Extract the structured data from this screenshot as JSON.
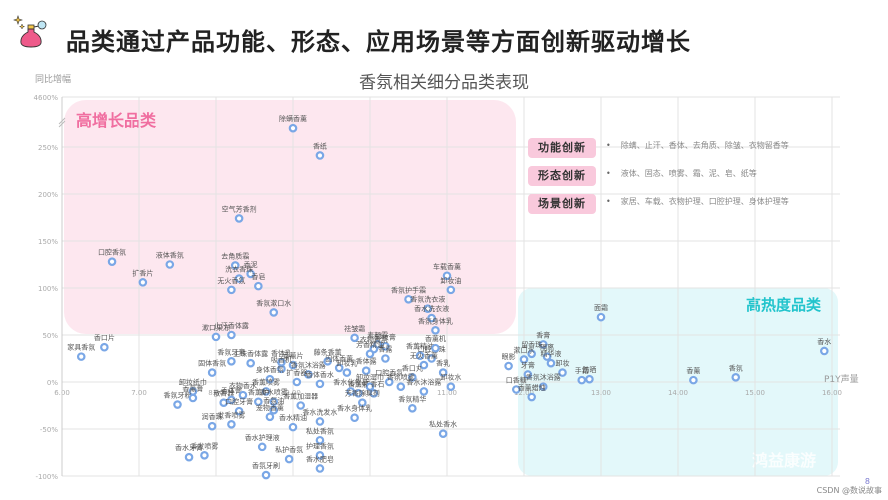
{
  "header": {
    "title": "品类通过产品功能、形态、应用场景等方面创新驱动增长",
    "icon": "perfume-bottle-icon"
  },
  "legend": [
    {
      "tag": "功能创新",
      "desc": "除螨、止汗、香体、去角质、除皱、衣物留香等"
    },
    {
      "tag": "形态创新",
      "desc": "液体、固态、喷雾、霜、泥、皂、纸等"
    },
    {
      "tag": "场景创新",
      "desc": "家居、车载、衣物护理、口腔护理、身体护理等"
    }
  ],
  "zones": {
    "high_growth": {
      "label": "高增长品类",
      "color": "#f06ea0",
      "bg": "#fde7ef"
    },
    "high_heat": {
      "label": "高热度品类",
      "color": "#22c4cc",
      "bg": "#e3f8fa"
    }
  },
  "watermark": "鸿益康游",
  "footer": {
    "credit": "CSDN @数说故事",
    "page": "8"
  },
  "colors": {
    "point": "#7aa7e6",
    "grid": "#e3e3e3",
    "axis_text": "#aaaaaa"
  },
  "chart_data": {
    "type": "scatter",
    "title": "香氛相关细分品类表现",
    "xlabel": "P1Y声量",
    "ylabel": "同比增幅",
    "x_ticks": [
      "6.00",
      "7.00",
      "8.00",
      "9.00",
      "10.00",
      "11.00",
      "12.00",
      "13.00",
      "14.00",
      "15.00",
      "16.00"
    ],
    "xlim": [
      6,
      16
    ],
    "y_ticks": [
      "4600%",
      "250%",
      "200%",
      "150%",
      "100%",
      "50%",
      "0%",
      "-50%",
      "-100%"
    ],
    "ylim": [
      -100,
      300
    ],
    "y_axis_break": "250% → 4600%",
    "grid": true,
    "points": [
      {
        "name": "除螨香薰",
        "x": 9.0,
        "y": 290
      },
      {
        "name": "香纸",
        "x": 9.35,
        "y": 241
      },
      {
        "name": "空气芳香剂",
        "x": 8.3,
        "y": 174
      },
      {
        "name": "口腔香氛",
        "x": 6.65,
        "y": 128
      },
      {
        "name": "液体香氛",
        "x": 7.4,
        "y": 125
      },
      {
        "name": "扩香片",
        "x": 7.05,
        "y": 106
      },
      {
        "name": "去角质霜",
        "x": 8.25,
        "y": 124
      },
      {
        "name": "香泥",
        "x": 8.45,
        "y": 115
      },
      {
        "name": "洗衣香珠",
        "x": 8.3,
        "y": 110
      },
      {
        "name": "香皂",
        "x": 8.55,
        "y": 102
      },
      {
        "name": "无火香氛",
        "x": 8.2,
        "y": 98
      },
      {
        "name": "香氛漱口水",
        "x": 8.75,
        "y": 74
      },
      {
        "name": "止汗香体露",
        "x": 8.2,
        "y": 50
      },
      {
        "name": "漱口果冻",
        "x": 8.0,
        "y": 48
      },
      {
        "name": "车载香薰",
        "x": 11.0,
        "y": 113
      },
      {
        "name": "卸妆油",
        "x": 11.05,
        "y": 98
      },
      {
        "name": "香氛护手霜",
        "x": 10.5,
        "y": 88
      },
      {
        "name": "香氛洗衣液",
        "x": 10.75,
        "y": 78
      },
      {
        "name": "香水洗衣液",
        "x": 10.8,
        "y": 68
      },
      {
        "name": "香氛身体乳",
        "x": 10.85,
        "y": 55
      },
      {
        "name": "祛皱霜",
        "x": 9.8,
        "y": 47
      },
      {
        "name": "素颜霜",
        "x": 10.1,
        "y": 40
      },
      {
        "name": "卸妆膏",
        "x": 10.2,
        "y": 38
      },
      {
        "name": "面霜",
        "x": 13.0,
        "y": 69
      },
      {
        "name": "香膏",
        "x": 12.25,
        "y": 40
      },
      {
        "name": "留香珠",
        "x": 12.1,
        "y": 30
      },
      {
        "name": "隔离",
        "x": 12.3,
        "y": 27
      },
      {
        "name": "漱口水",
        "x": 12.0,
        "y": 24
      },
      {
        "name": "精华液",
        "x": 12.35,
        "y": 20
      },
      {
        "name": "眼影",
        "x": 11.8,
        "y": 17
      },
      {
        "name": "卸妆",
        "x": 12.5,
        "y": 10
      },
      {
        "name": "牙膏",
        "x": 12.05,
        "y": 8
      },
      {
        "name": "手霜",
        "x": 12.75,
        "y": 2
      },
      {
        "name": "防晒",
        "x": 12.85,
        "y": 3
      },
      {
        "name": "香氛沐浴露",
        "x": 12.25,
        "y": -5
      },
      {
        "name": "口香糖",
        "x": 11.9,
        "y": -8
      },
      {
        "name": "香薰蜡烛",
        "x": 12.1,
        "y": -16
      },
      {
        "name": "香薰",
        "x": 14.2,
        "y": 2
      },
      {
        "name": "香氛",
        "x": 14.75,
        "y": 5
      },
      {
        "name": "香水",
        "x": 15.9,
        "y": 33
      },
      {
        "name": "家具香氛",
        "x": 6.25,
        "y": 27
      },
      {
        "name": "香口片",
        "x": 6.55,
        "y": 37
      },
      {
        "name": "香氛牙膏",
        "x": 8.2,
        "y": 22
      },
      {
        "name": "固体香氛",
        "x": 7.95,
        "y": 10
      },
      {
        "name": "主珠香体露",
        "x": 8.45,
        "y": 20
      },
      {
        "name": "香体乳",
        "x": 8.85,
        "y": 21
      },
      {
        "name": "香薰片",
        "x": 9.0,
        "y": 18
      },
      {
        "name": "吸香机",
        "x": 8.85,
        "y": 14
      },
      {
        "name": "香氛沐浴露",
        "x": 9.2,
        "y": 8
      },
      {
        "name": "身体香氛",
        "x": 8.7,
        "y": 3
      },
      {
        "name": "扩香器",
        "x": 9.05,
        "y": 0
      },
      {
        "name": "香体香水",
        "x": 9.35,
        "y": -2
      },
      {
        "name": "卸妆纸巾",
        "x": 7.7,
        "y": -10
      },
      {
        "name": "香氛牙粉",
        "x": 7.5,
        "y": -24
      },
      {
        "name": "香薰膏",
        "x": 7.7,
        "y": -17
      },
      {
        "name": "散香器",
        "x": 8.1,
        "y": -22
      },
      {
        "name": "香体膏",
        "x": 8.2,
        "y": -19
      },
      {
        "name": "衣物香水",
        "x": 8.35,
        "y": -14
      },
      {
        "name": "香薰喷雾",
        "x": 8.65,
        "y": -10
      },
      {
        "name": "香薰炉",
        "x": 8.55,
        "y": -21
      },
      {
        "name": "香水喷雾",
        "x": 8.75,
        "y": -21
      },
      {
        "name": "口腔牙膏",
        "x": 8.3,
        "y": -31
      },
      {
        "name": "润香珠",
        "x": 7.95,
        "y": -47
      },
      {
        "name": "香氛油",
        "x": 8.75,
        "y": -30
      },
      {
        "name": "香薰加湿器",
        "x": 9.1,
        "y": -25
      },
      {
        "name": "宠物香薰",
        "x": 8.7,
        "y": -37
      },
      {
        "name": "香水洗发水",
        "x": 9.35,
        "y": -42
      },
      {
        "name": "香水精油",
        "x": 9.0,
        "y": -48
      },
      {
        "name": "发香喷雾",
        "x": 8.2,
        "y": -45
      },
      {
        "name": "香水护理液",
        "x": 8.6,
        "y": -69
      },
      {
        "name": "私处香氛",
        "x": 9.35,
        "y": -62
      },
      {
        "name": "护理香氛",
        "x": 9.35,
        "y": -78
      },
      {
        "name": "私护香氛",
        "x": 8.95,
        "y": -82
      },
      {
        "name": "香水牙膏",
        "x": 7.65,
        "y": -80
      },
      {
        "name": "香发喷雾",
        "x": 7.85,
        "y": -78
      },
      {
        "name": "香氛牙刷",
        "x": 8.65,
        "y": -99
      },
      {
        "name": "香水肥皂",
        "x": 9.35,
        "y": -92
      },
      {
        "name": "藤条香薰",
        "x": 9.45,
        "y": 22
      },
      {
        "name": "固体香薰",
        "x": 9.6,
        "y": 15
      },
      {
        "name": "卸妆乳",
        "x": 9.7,
        "y": 10
      },
      {
        "name": "香体露",
        "x": 9.95,
        "y": 12
      },
      {
        "name": "衣物香氛",
        "x": 10.05,
        "y": 35
      },
      {
        "name": "芳香精油",
        "x": 10.0,
        "y": 30
      },
      {
        "name": "香露",
        "x": 10.2,
        "y": 25
      },
      {
        "name": "香水化妆品",
        "x": 9.75,
        "y": -10
      },
      {
        "name": "香薰灯",
        "x": 9.85,
        "y": -12
      },
      {
        "name": "卸妆湿巾",
        "x": 10.0,
        "y": -5
      },
      {
        "name": "扩香石",
        "x": 10.05,
        "y": -12
      },
      {
        "name": "芳香除臭剂",
        "x": 9.9,
        "y": -22
      },
      {
        "name": "香水身体乳",
        "x": 9.8,
        "y": -38
      },
      {
        "name": "口腔香氛",
        "x": 10.25,
        "y": 0
      },
      {
        "name": "香薰精油",
        "x": 10.65,
        "y": 28
      },
      {
        "name": "口腔爆珠",
        "x": 10.8,
        "y": 25
      },
      {
        "name": "无火香薰",
        "x": 10.7,
        "y": 18
      },
      {
        "name": "香薰机",
        "x": 10.85,
        "y": 36
      },
      {
        "name": "香口丸",
        "x": 10.55,
        "y": 5
      },
      {
        "name": "香氛喷雾",
        "x": 10.4,
        "y": -5
      },
      {
        "name": "香乳",
        "x": 10.95,
        "y": 10
      },
      {
        "name": "卸妆水",
        "x": 11.05,
        "y": -5
      },
      {
        "name": "香水沐浴露",
        "x": 10.7,
        "y": -10
      },
      {
        "name": "香氛精华",
        "x": 10.55,
        "y": -28
      },
      {
        "name": "私处香水",
        "x": 10.95,
        "y": -55
      }
    ]
  }
}
